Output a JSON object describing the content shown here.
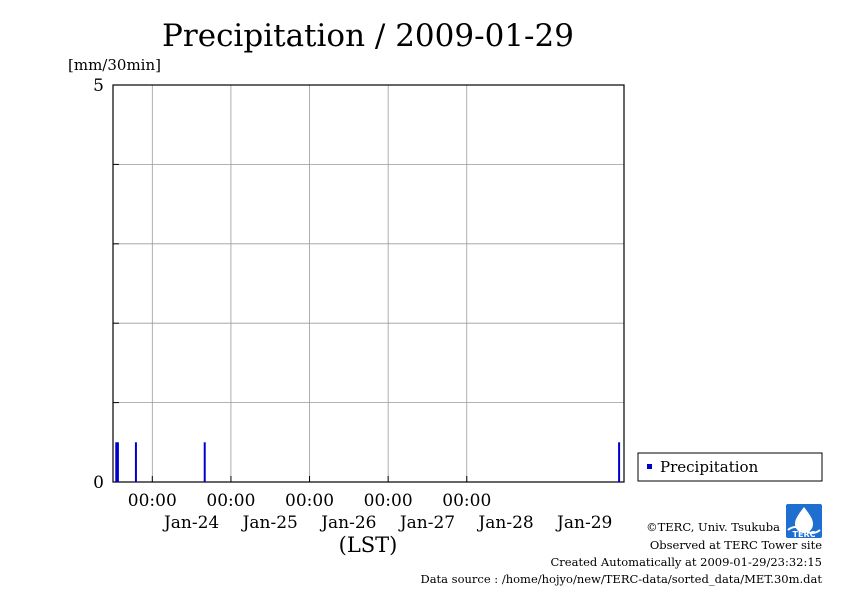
{
  "chart_data": {
    "type": "bar",
    "title": "Precipitation / 2009-01-29",
    "ylabel": "[mm/30min]",
    "xlabel": "(LST)",
    "ylim": [
      0,
      5
    ],
    "y_ticks": [
      "0",
      "5"
    ],
    "x_range_days": [
      "Jan-23 12:00",
      "Jan-29 24:00"
    ],
    "x_tick_time_labels": [
      "00:00",
      "00:00",
      "00:00",
      "00:00",
      "00:00"
    ],
    "x_date_labels": [
      "Jan-24",
      "Jan-25",
      "Jan-26",
      "Jan-27",
      "Jan-28",
      "Jan-29"
    ],
    "grid": true,
    "legend_position": "right",
    "series": [
      {
        "name": "Precipitation",
        "color": "#0000cc",
        "points": [
          {
            "time": "Jan-23 13:00",
            "value": 0.5
          },
          {
            "time": "Jan-23 13:30",
            "value": 0.5
          },
          {
            "time": "Jan-23 19:00",
            "value": 0.5
          },
          {
            "time": "Jan-24 16:00",
            "value": 0.5
          },
          {
            "time": "Jan-29 22:30",
            "value": 0.5
          }
        ]
      }
    ]
  },
  "footer": {
    "copyright": "©TERC, Univ. Tsukuba",
    "observed": "Observed at TERC Tower site",
    "created": "Created Automatically at 2009-01-29/23:32:15",
    "source": "Data source : /home/hojyo/new/TERC-data/sorted_data/MET.30m.dat"
  },
  "logo_text": "TERC"
}
